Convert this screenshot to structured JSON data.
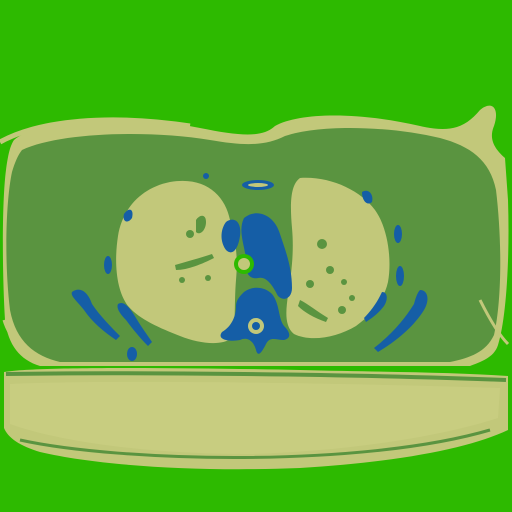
{
  "image": {
    "kind": "segmented-axial-ct-slice",
    "palette": {
      "background": "#2dba00",
      "skin_fat": "#c2c87a",
      "body_tissue": "#5a9440",
      "lung": "#c2c87a",
      "bone_vessel": "#155ea6",
      "airway": "#2dba00"
    }
  }
}
